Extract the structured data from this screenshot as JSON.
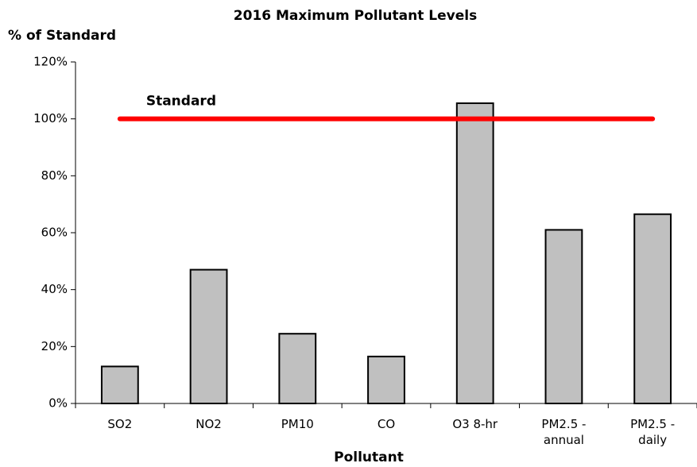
{
  "chart_data": {
    "type": "bar",
    "title": "2016 Maximum Pollutant Levels",
    "y_label": "% of Standard",
    "x_label": "Pollutant",
    "categories": [
      "SO2",
      "NO2",
      "PM10",
      "CO",
      "O3 8-hr",
      "PM2.5 - annual",
      "PM2.5 - daily"
    ],
    "values": [
      13,
      47,
      24.5,
      16.5,
      105.5,
      61,
      66.5
    ],
    "color": "#c0c0c0",
    "ylim": [
      0,
      120
    ],
    "yticks": [
      {
        "value": 0,
        "label": "0%"
      },
      {
        "value": 20,
        "label": "20%"
      },
      {
        "value": 40,
        "label": "40%"
      },
      {
        "value": 60,
        "label": "60%"
      },
      {
        "value": 80,
        "label": "80%"
      },
      {
        "value": 100,
        "label": "100%"
      },
      {
        "value": 120,
        "label": "120%"
      }
    ],
    "grid": false,
    "reference_line": {
      "label": "Standard",
      "value": 100,
      "color": "#ff0000"
    }
  }
}
